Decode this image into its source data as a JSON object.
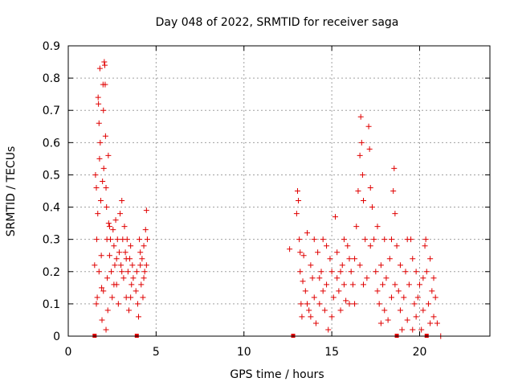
{
  "chart_data": {
    "type": "scatter",
    "title": "Day 048 of 2022, SRMTID for receiver saga",
    "xlabel": "GPS time / hours",
    "ylabel": "SRMTID / TECUs",
    "xlim": [
      0,
      24
    ],
    "ylim": [
      0,
      0.9
    ],
    "x_ticks": [
      0,
      5,
      10,
      15,
      20
    ],
    "x_tick_labels": [
      "0",
      "5",
      "10",
      "15",
      "20"
    ],
    "y_ticks": [
      0,
      0.1,
      0.2,
      0.3,
      0.4,
      0.5,
      0.6,
      0.7,
      0.8,
      0.9
    ],
    "y_tick_labels": [
      "0",
      "0.1",
      "0.2",
      "0.3",
      "0.4",
      "0.5",
      "0.6",
      "0.7",
      "0.8",
      "0.9"
    ],
    "grid": true,
    "marker": "+",
    "color": "#e00000",
    "gap_markers_x": [
      1.5,
      3.9,
      12.8,
      18.7,
      20.4
    ],
    "series": [
      {
        "name": "SRMTID",
        "points": [
          [
            1.5,
            0.22
          ],
          [
            1.55,
            0.5
          ],
          [
            1.6,
            0.46
          ],
          [
            1.62,
            0.3
          ],
          [
            1.65,
            0.12
          ],
          [
            1.68,
            0.38
          ],
          [
            1.7,
            0.74
          ],
          [
            1.72,
            0.72
          ],
          [
            1.75,
            0.66
          ],
          [
            1.78,
            0.55
          ],
          [
            1.8,
            0.83
          ],
          [
            1.82,
            0.6
          ],
          [
            1.85,
            0.42
          ],
          [
            1.88,
            0.25
          ],
          [
            1.9,
            0.15
          ],
          [
            1.92,
            0.05
          ],
          [
            1.95,
            0.48
          ],
          [
            1.98,
            0.78
          ],
          [
            2.0,
            0.7
          ],
          [
            2.02,
            0.52
          ],
          [
            2.05,
            0.85
          ],
          [
            2.08,
            0.84
          ],
          [
            2.1,
            0.78
          ],
          [
            2.12,
            0.62
          ],
          [
            2.15,
            0.46
          ],
          [
            2.18,
            0.4
          ],
          [
            2.2,
            0.3
          ],
          [
            2.22,
            0.18
          ],
          [
            2.25,
            0.08
          ],
          [
            2.28,
            0.56
          ],
          [
            2.3,
            0.35
          ],
          [
            2.35,
            0.25
          ],
          [
            2.4,
            0.3
          ],
          [
            2.45,
            0.2
          ],
          [
            2.5,
            0.12
          ],
          [
            2.55,
            0.33
          ],
          [
            2.6,
            0.28
          ],
          [
            2.65,
            0.22
          ],
          [
            2.7,
            0.36
          ],
          [
            2.75,
            0.16
          ],
          [
            2.8,
            0.3
          ],
          [
            2.85,
            0.1
          ],
          [
            2.9,
            0.26
          ],
          [
            2.95,
            0.38
          ],
          [
            3.0,
            0.22
          ],
          [
            3.05,
            0.42
          ],
          [
            3.1,
            0.3
          ],
          [
            3.15,
            0.18
          ],
          [
            3.2,
            0.34
          ],
          [
            3.25,
            0.26
          ],
          [
            3.3,
            0.12
          ],
          [
            3.35,
            0.3
          ],
          [
            3.4,
            0.2
          ],
          [
            3.45,
            0.08
          ],
          [
            3.5,
            0.24
          ],
          [
            3.55,
            0.28
          ],
          [
            3.6,
            0.16
          ],
          [
            3.65,
            0.22
          ],
          [
            3.7,
            0.18
          ],
          [
            3.85,
            0.14
          ],
          [
            3.9,
            0.2
          ],
          [
            3.95,
            0.1
          ],
          [
            4.0,
            0.06
          ],
          [
            4.05,
            0.3
          ],
          [
            4.1,
            0.22
          ],
          [
            4.15,
            0.16
          ],
          [
            4.2,
            0.24
          ],
          [
            4.25,
            0.12
          ],
          [
            4.3,
            0.28
          ],
          [
            4.35,
            0.2
          ],
          [
            4.4,
            0.33
          ],
          [
            4.45,
            0.39
          ],
          [
            4.5,
            0.3
          ],
          [
            1.6,
            0.1
          ],
          [
            1.75,
            0.2
          ],
          [
            2.0,
            0.14
          ],
          [
            2.15,
            0.02
          ],
          [
            2.35,
            0.34
          ],
          [
            2.6,
            0.16
          ],
          [
            2.75,
            0.24
          ],
          [
            3.05,
            0.2
          ],
          [
            3.3,
            0.24
          ],
          [
            3.55,
            0.12
          ],
          [
            4.1,
            0.26
          ],
          [
            4.3,
            0.18
          ],
          [
            4.45,
            0.22
          ],
          [
            12.6,
            0.27
          ],
          [
            13.0,
            0.38
          ],
          [
            13.05,
            0.45
          ],
          [
            13.1,
            0.42
          ],
          [
            13.15,
            0.3
          ],
          [
            13.2,
            0.2
          ],
          [
            13.25,
            0.1
          ],
          [
            13.3,
            0.06
          ],
          [
            13.35,
            0.17
          ],
          [
            13.4,
            0.25
          ],
          [
            13.5,
            0.14
          ],
          [
            13.6,
            0.32
          ],
          [
            13.7,
            0.08
          ],
          [
            13.8,
            0.22
          ],
          [
            13.9,
            0.18
          ],
          [
            14.0,
            0.12
          ],
          [
            14.1,
            0.04
          ],
          [
            14.2,
            0.26
          ],
          [
            14.3,
            0.1
          ],
          [
            14.4,
            0.2
          ],
          [
            14.5,
            0.3
          ],
          [
            14.6,
            0.08
          ],
          [
            14.7,
            0.16
          ],
          [
            14.8,
            0.02
          ],
          [
            14.9,
            0.24
          ],
          [
            15.0,
            0.2
          ],
          [
            15.1,
            0.12
          ],
          [
            15.2,
            0.37
          ],
          [
            15.3,
            0.18
          ],
          [
            15.4,
            0.14
          ],
          [
            15.5,
            0.08
          ],
          [
            15.6,
            0.22
          ],
          [
            15.7,
            0.16
          ],
          [
            15.8,
            0.11
          ],
          [
            15.9,
            0.28
          ],
          [
            16.0,
            0.1
          ],
          [
            16.1,
            0.2
          ],
          [
            16.2,
            0.16
          ],
          [
            16.3,
            0.24
          ],
          [
            16.4,
            0.34
          ],
          [
            16.5,
            0.45
          ],
          [
            16.6,
            0.56
          ],
          [
            16.65,
            0.68
          ],
          [
            16.7,
            0.6
          ],
          [
            16.75,
            0.5
          ],
          [
            16.8,
            0.42
          ],
          [
            16.9,
            0.3
          ],
          [
            17.0,
            0.18
          ],
          [
            17.1,
            0.65
          ],
          [
            17.15,
            0.58
          ],
          [
            17.2,
            0.46
          ],
          [
            17.3,
            0.4
          ],
          [
            17.4,
            0.3
          ],
          [
            17.5,
            0.2
          ],
          [
            17.6,
            0.14
          ],
          [
            17.7,
            0.1
          ],
          [
            17.8,
            0.22
          ],
          [
            17.9,
            0.16
          ],
          [
            18.0,
            0.08
          ],
          [
            18.1,
            0.18
          ],
          [
            18.2,
            0.05
          ],
          [
            18.3,
            0.24
          ],
          [
            18.4,
            0.3
          ],
          [
            18.5,
            0.45
          ],
          [
            18.55,
            0.52
          ],
          [
            18.6,
            0.38
          ],
          [
            18.7,
            0.28
          ],
          [
            18.8,
            0.14
          ],
          [
            18.9,
            0.08
          ],
          [
            19.0,
            0.02
          ],
          [
            19.1,
            0.12
          ],
          [
            19.2,
            0.2
          ],
          [
            19.3,
            0.05
          ],
          [
            19.4,
            0.16
          ],
          [
            19.5,
            0.3
          ],
          [
            19.6,
            0.24
          ],
          [
            19.7,
            0.1
          ],
          [
            19.8,
            0.06
          ],
          [
            19.9,
            0.12
          ],
          [
            20.0,
            0.16
          ],
          [
            20.1,
            0.02
          ],
          [
            20.2,
            0.08
          ],
          [
            20.3,
            0.28
          ],
          [
            20.35,
            0.3
          ],
          [
            20.4,
            0.2
          ],
          [
            20.5,
            0.1
          ],
          [
            20.6,
            0.24
          ],
          [
            20.7,
            0.14
          ],
          [
            20.8,
            0.06
          ],
          [
            20.9,
            0.12
          ],
          [
            21.0,
            0.04
          ],
          [
            21.2,
            0.0
          ],
          [
            13.2,
            0.26
          ],
          [
            13.6,
            0.1
          ],
          [
            14.0,
            0.3
          ],
          [
            14.3,
            0.18
          ],
          [
            14.7,
            0.28
          ],
          [
            15.0,
            0.06
          ],
          [
            15.3,
            0.26
          ],
          [
            15.7,
            0.3
          ],
          [
            16.0,
            0.24
          ],
          [
            16.3,
            0.1
          ],
          [
            16.8,
            0.16
          ],
          [
            17.2,
            0.28
          ],
          [
            17.6,
            0.34
          ],
          [
            18.0,
            0.3
          ],
          [
            18.4,
            0.12
          ],
          [
            18.9,
            0.22
          ],
          [
            19.3,
            0.3
          ],
          [
            19.8,
            0.2
          ],
          [
            20.2,
            0.18
          ],
          [
            20.6,
            0.04
          ],
          [
            13.8,
            0.06
          ],
          [
            14.5,
            0.14
          ],
          [
            15.5,
            0.2
          ],
          [
            16.6,
            0.22
          ],
          [
            17.8,
            0.04
          ],
          [
            18.6,
            0.16
          ],
          [
            19.6,
            0.02
          ],
          [
            20.8,
            0.18
          ]
        ]
      }
    ]
  }
}
